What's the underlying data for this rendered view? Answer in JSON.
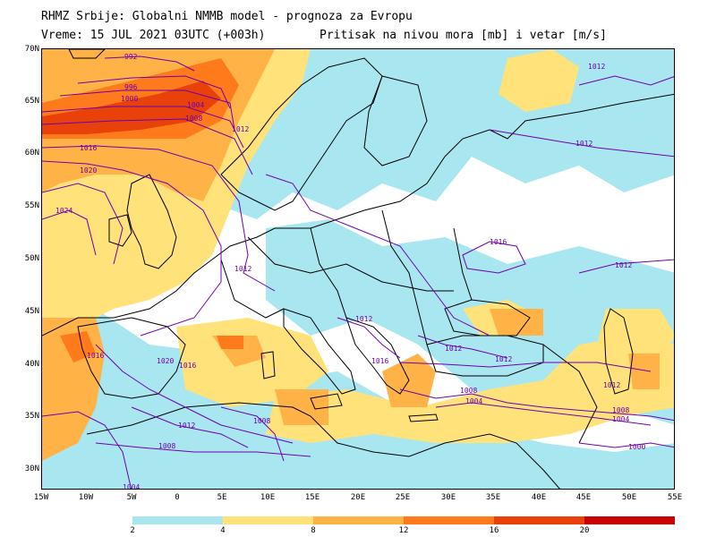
{
  "header": {
    "line1": "RHMZ Srbije: Globalni NMMB model - prognoza za Evropu",
    "line2": "Vreme: 15 JUL 2021 03UTC (+003h)",
    "subtitle": "Pritisak na nivou mora [mb] i vetar [m/s]"
  },
  "axes": {
    "lat_labels": [
      "70N",
      "65N",
      "60N",
      "55N",
      "50N",
      "45N",
      "40N",
      "35N",
      "30N"
    ],
    "lon_labels": [
      "15W",
      "10W",
      "5W",
      "0",
      "5E",
      "10E",
      "15E",
      "20E",
      "25E",
      "30E",
      "35E",
      "40E",
      "45E",
      "50E",
      "55E"
    ]
  },
  "legend": {
    "colors": [
      "#a8e6f0",
      "#ffe27a",
      "#ffb347",
      "#ff7a1a",
      "#e8420a",
      "#c80000"
    ],
    "labels": [
      "2",
      "4",
      "8",
      "12",
      "16",
      "20"
    ]
  },
  "isobars": [
    {
      "label": "992",
      "value": 992
    },
    {
      "label": "996",
      "value": 996
    },
    {
      "label": "1000",
      "value": 1000
    },
    {
      "label": "1004",
      "value": 1004
    },
    {
      "label": "1008",
      "value": 1008
    },
    {
      "label": "1012",
      "value": 1012
    },
    {
      "label": "1016",
      "value": 1016
    },
    {
      "label": "1020",
      "value": 1020
    },
    {
      "label": "1024",
      "value": 1024
    },
    {
      "label": "1012",
      "value": 1012
    },
    {
      "label": "1012",
      "value": 1012
    },
    {
      "label": "1012",
      "value": 1012
    },
    {
      "label": "1016",
      "value": 1016
    },
    {
      "label": "1012",
      "value": 1012
    },
    {
      "label": "1012",
      "value": 1012
    },
    {
      "label": "1012",
      "value": 1012
    },
    {
      "label": "1016",
      "value": 1016
    },
    {
      "label": "1020",
      "value": 1020
    },
    {
      "label": "1016",
      "value": 1016
    },
    {
      "label": "1012",
      "value": 1012
    },
    {
      "label": "1008",
      "value": 1008
    },
    {
      "label": "1004",
      "value": 1004
    },
    {
      "label": "1008",
      "value": 1008
    },
    {
      "label": "1012",
      "value": 1012
    },
    {
      "label": "1008",
      "value": 1008
    },
    {
      "label": "1004",
      "value": 1004
    },
    {
      "label": "1000",
      "value": 1000
    },
    {
      "label": "1012",
      "value": 1012
    },
    {
      "label": "1008",
      "value": 1008
    },
    {
      "label": "1004",
      "value": 1004
    },
    {
      "label": "1016",
      "value": 1016
    },
    {
      "label": "1016",
      "value": 1016
    }
  ],
  "colors": {
    "isobar": "#7000b0",
    "coast": "#000000",
    "frame": "#000000"
  }
}
